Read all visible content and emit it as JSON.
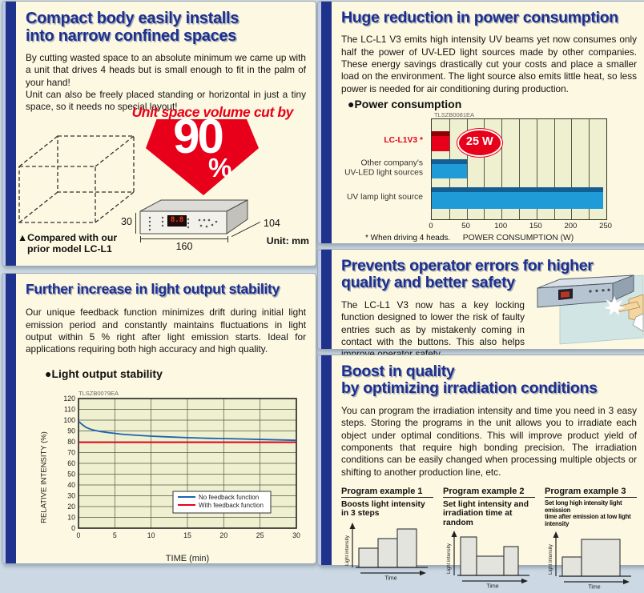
{
  "panels": {
    "compact": {
      "title_line1": "Compact body easily installs",
      "title_line2": "into narrow confined spaces",
      "para1": "By cutting wasted space to an absolute minimum we came up with a unit that drives 4 heads but is small enough to fit in the palm of your hand!",
      "para2": "Unit can also be freely placed standing or horizontal in just a tiny space, so it needs no special layout!",
      "callout": "Unit space volume cut by",
      "percent": "90",
      "percent_sign": "%",
      "cube_caption_line1": "▲Compared with our",
      "cube_caption_line2": "prior model LC-L1",
      "dim_height": "30",
      "dim_width": "160",
      "dim_depth": "104",
      "unit_label": "Unit: mm",
      "display_value": "8.8"
    },
    "power": {
      "title": "Huge reduction in power consumption",
      "body": "The LC-L1 V3 emits high intensity UV beams yet now consumes only half the power of UV-LED light sources made by other companies. These energy savings drastically cut your costs and place a smaller load on the environment. The light source also emits little heat, so less power is needed for air conditioning during production.",
      "chart_heading": "●Power consumption",
      "chart_id": "TLSZB0081EA",
      "footnote": "* When driving 4 heads.",
      "chart": {
        "type": "bar",
        "orientation": "horizontal",
        "categories": [
          "LC-L1V3 *",
          "Other company's UV-LED light sources",
          "UV lamp light source"
        ],
        "category_lines": [
          [
            "LC-L1V3 *"
          ],
          [
            "Other company's",
            "UV-LED light sources"
          ],
          [
            "UV lamp light source"
          ]
        ],
        "values": [
          25,
          50,
          245
        ],
        "bar_colors": [
          "#e8001a",
          "#1f9cd8",
          "#1f9cd8"
        ],
        "bar_edge_colors": [
          "#8e0008",
          "#135f93",
          "#135f93"
        ],
        "label_colors": [
          "#e8001a",
          "#333333",
          "#333333"
        ],
        "badge": "25 W",
        "xlabel": "POWER CONSUMPTION (W)",
        "xticks": [
          "0",
          "50",
          "100",
          "150",
          "200",
          "250"
        ],
        "xlim": [
          0,
          250
        ],
        "grid_interval": 25,
        "plot_bg": "#eef0cf"
      }
    },
    "safety": {
      "title_line1": "Prevents operator errors for higher",
      "title_line2": "quality and better safety",
      "body": "The LC-L1 V3 now has a key locking function designed to lower the risk of faulty entries such as by mistakenly coming in contact with the buttons. This also helps improve operator safety."
    },
    "stability": {
      "title": "Further increase in light output stability",
      "body": "Our unique feedback function minimizes drift during initial light emission period and constantly maintains fluctuations in light output within 5 % right after light emission starts. Ideal for applications requiring both high accuracy and high quality.",
      "chart_heading": "●Light output stability",
      "chart_id": "TLSZB0079EA",
      "chart": {
        "type": "line",
        "xlabel": "TIME (min)",
        "ylabel": "RELATIVE INTENSITY (%)",
        "xlim": [
          0,
          30
        ],
        "ylim": [
          0,
          120
        ],
        "xticks": [
          0,
          5,
          10,
          15,
          20,
          25,
          30
        ],
        "yticks": [
          0,
          10,
          20,
          30,
          40,
          50,
          60,
          70,
          80,
          90,
          100,
          110,
          120
        ],
        "plot_bg": "#eef0cf",
        "series": [
          {
            "name": "No feedback function",
            "color": "#1d62b4",
            "points": [
              [
                0,
                99
              ],
              [
                0.5,
                96
              ],
              [
                1,
                93.5
              ],
              [
                1.5,
                92
              ],
              [
                2,
                91
              ],
              [
                3,
                89.5
              ],
              [
                4,
                88.5
              ],
              [
                5,
                87.8
              ],
              [
                6,
                87
              ],
              [
                8,
                86
              ],
              [
                10,
                85.2
              ],
              [
                12,
                84.6
              ],
              [
                15,
                83.8
              ],
              [
                18,
                83.2
              ],
              [
                20,
                83
              ],
              [
                23,
                82.5
              ],
              [
                26,
                82
              ],
              [
                30,
                81.3
              ]
            ]
          },
          {
            "name": "With feedback function",
            "color": "#e8001a",
            "points": [
              [
                0,
                79.5
              ],
              [
                30,
                79.5
              ]
            ]
          }
        ]
      }
    },
    "quality": {
      "title_line1": "Boost in quality",
      "title_line2": "by optimizing irradiation conditions",
      "body": "You can program the irradiation intensity and time you need in 3 easy steps. Storing the programs in the unit allows you to irradiate each object under optimal conditions. This will improve product yield of components that require high bonding precision. The irradiation conditions can be easily changed when processing multiple objects or shifting to another production line, etc.",
      "examples": [
        {
          "title": "Program example 1",
          "subtitle_line1": "Boosts light intensity",
          "subtitle_line2": "in 3 steps",
          "ylabel": "Light intensity",
          "xlabel": "Time",
          "bars": [
            [
              24,
              24
            ],
            [
              24,
              36
            ],
            [
              24,
              48
            ]
          ]
        },
        {
          "title": "Program example 2",
          "subtitle_line1": "Set light intensity and",
          "subtitle_line2": "irradiation time at random",
          "ylabel": "Light intensity",
          "xlabel": "Time",
          "bars": [
            [
              20,
              48
            ],
            [
              34,
              24
            ],
            [
              18,
              36
            ]
          ]
        },
        {
          "title": "Program example 3",
          "subtitle_line1": "Set long high intensity light emission",
          "subtitle_line2": "time after emission at low light intensity",
          "ylabel": "Light intensity",
          "xlabel": "Time",
          "bars": [
            [
              24,
              24
            ],
            [
              48,
              46
            ]
          ]
        }
      ]
    }
  }
}
